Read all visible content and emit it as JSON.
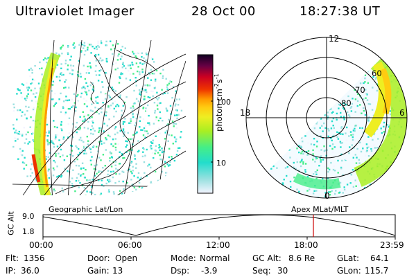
{
  "header": {
    "title": "Ultraviolet Imager",
    "date": "28 Oct 00",
    "time": "18:27:38 UT"
  },
  "colorbar": {
    "label_unit": "photon cm",
    "label_exp1": "-2",
    "label_s": "s",
    "label_exp2": "-1",
    "ticks": [
      "100",
      "10"
    ],
    "ticks_values": [
      100,
      10
    ]
  },
  "left_panel": {
    "caption": "Geographic Lat/Lon"
  },
  "right_panel": {
    "caption": "Apex MLat/MLT",
    "mlt_labels": {
      "top": "12",
      "left": "18",
      "right": "6",
      "bottom": "0"
    },
    "lat_labels": [
      "60",
      "70",
      "80"
    ]
  },
  "timeline": {
    "axis_label": "GC Alt",
    "y_ticks": [
      "9.0",
      "1.8"
    ],
    "x_ticks": [
      "00:00",
      "06:00",
      "12:00",
      "18:00",
      "23:59"
    ],
    "marker_time": "18:27:38"
  },
  "info": {
    "flt_label": "Flt:",
    "flt_value": "1356",
    "ip_label": "IP:",
    "ip_value": "36.0",
    "door_label": "Door:",
    "door_value": "Open",
    "gain_label": "Gain:",
    "gain_value": "13",
    "mode_label": "Mode:",
    "mode_value": "Normal",
    "dsp_label": "Dsp:",
    "dsp_value": "-3.9",
    "gcalt_label": "GC Alt:",
    "gcalt_value": "8.6 Re",
    "seq_label": "Seq:",
    "seq_value": "30",
    "glat_label": "GLat:",
    "glat_value": "64.1",
    "glon_label": "GLon:",
    "glon_value": "115.7"
  },
  "colors": {
    "grid": "#000000",
    "marker": "#cc0000",
    "scale": [
      "#f4f4ff",
      "#9ae0e0",
      "#22ddcc",
      "#44ee88",
      "#aaee22",
      "#eeee22",
      "#ffcc11",
      "#ff9900",
      "#ee3300",
      "#cc0022",
      "#660044",
      "#110022"
    ]
  }
}
